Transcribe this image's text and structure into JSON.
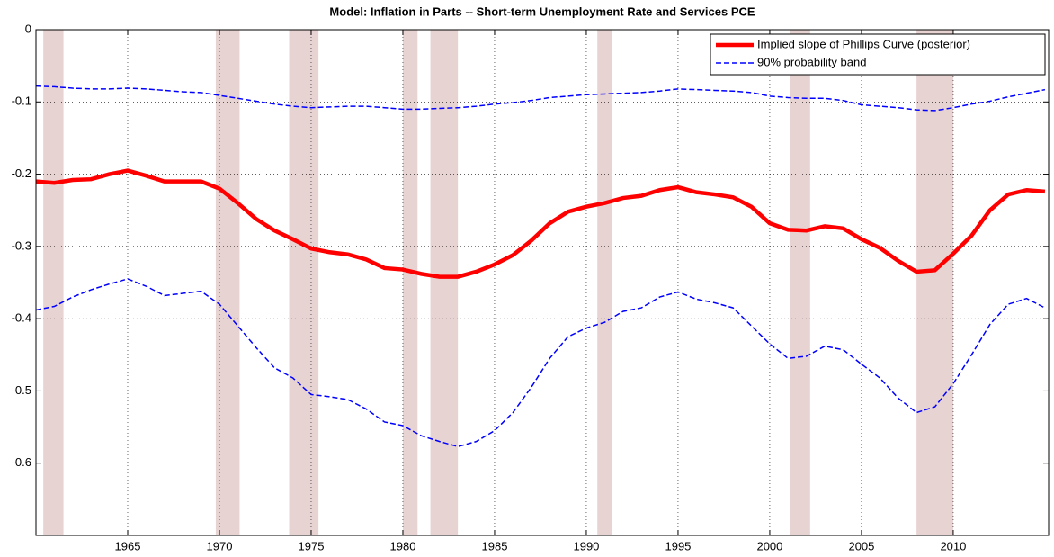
{
  "chart_data": {
    "type": "line",
    "title": "Model: Inflation in Parts -- Short-term  Unemployment Rate and Services PCE",
    "x": [
      1960,
      1961,
      1962,
      1963,
      1964,
      1965,
      1966,
      1967,
      1968,
      1969,
      1970,
      1971,
      1972,
      1973,
      1974,
      1975,
      1976,
      1977,
      1978,
      1979,
      1980,
      1981,
      1982,
      1983,
      1984,
      1985,
      1986,
      1987,
      1988,
      1989,
      1990,
      1991,
      1992,
      1993,
      1994,
      1995,
      1996,
      1997,
      1998,
      1999,
      2000,
      2001,
      2002,
      2003,
      2004,
      2005,
      2006,
      2007,
      2008,
      2009,
      2010,
      2011,
      2012,
      2013,
      2014,
      2015
    ],
    "series": [
      {
        "name": "Implied slope of Phillips Curve (posterior)",
        "color": "#ff0000",
        "values": [
          -0.21,
          -0.212,
          -0.208,
          -0.207,
          -0.2,
          -0.195,
          -0.202,
          -0.21,
          -0.21,
          -0.21,
          -0.22,
          -0.24,
          -0.262,
          -0.278,
          -0.29,
          -0.303,
          -0.308,
          -0.311,
          -0.318,
          -0.33,
          -0.332,
          -0.338,
          -0.342,
          -0.342,
          -0.335,
          -0.325,
          -0.312,
          -0.292,
          -0.268,
          -0.252,
          -0.245,
          -0.24,
          -0.233,
          -0.23,
          -0.222,
          -0.218,
          -0.225,
          -0.228,
          -0.232,
          -0.245,
          -0.268,
          -0.277,
          -0.278,
          -0.272,
          -0.275,
          -0.29,
          -0.302,
          -0.32,
          -0.335,
          -0.333,
          -0.31,
          -0.285,
          -0.25,
          -0.228,
          -0.222,
          -0.224
        ]
      },
      {
        "name": "90% probability band",
        "color": "#0000ff",
        "upper": [
          -0.078,
          -0.079,
          -0.081,
          -0.082,
          -0.082,
          -0.081,
          -0.082,
          -0.084,
          -0.086,
          -0.087,
          -0.091,
          -0.095,
          -0.099,
          -0.103,
          -0.106,
          -0.108,
          -0.107,
          -0.106,
          -0.106,
          -0.108,
          -0.11,
          -0.11,
          -0.109,
          -0.108,
          -0.106,
          -0.103,
          -0.101,
          -0.098,
          -0.094,
          -0.092,
          -0.09,
          -0.089,
          -0.088,
          -0.087,
          -0.085,
          -0.082,
          -0.083,
          -0.084,
          -0.085,
          -0.087,
          -0.092,
          -0.094,
          -0.095,
          -0.095,
          -0.098,
          -0.104,
          -0.106,
          -0.108,
          -0.111,
          -0.112,
          -0.108,
          -0.103,
          -0.099,
          -0.093,
          -0.088,
          -0.083
        ],
        "lower": [
          -0.388,
          -0.383,
          -0.37,
          -0.36,
          -0.352,
          -0.345,
          -0.355,
          -0.368,
          -0.365,
          -0.362,
          -0.38,
          -0.41,
          -0.44,
          -0.468,
          -0.482,
          -0.505,
          -0.508,
          -0.512,
          -0.525,
          -0.543,
          -0.548,
          -0.562,
          -0.57,
          -0.577,
          -0.57,
          -0.555,
          -0.53,
          -0.495,
          -0.455,
          -0.425,
          -0.413,
          -0.405,
          -0.39,
          -0.385,
          -0.37,
          -0.363,
          -0.373,
          -0.378,
          -0.385,
          -0.41,
          -0.435,
          -0.455,
          -0.452,
          -0.438,
          -0.443,
          -0.463,
          -0.482,
          -0.51,
          -0.53,
          -0.522,
          -0.49,
          -0.45,
          -0.408,
          -0.38,
          -0.372,
          -0.385
        ]
      }
    ],
    "shaded_ranges": [
      [
        1960.4,
        1961.5
      ],
      [
        1969.8,
        1971.1
      ],
      [
        1973.8,
        1975.4
      ],
      [
        1980.0,
        1980.8
      ],
      [
        1981.5,
        1983.0
      ],
      [
        1990.6,
        1991.4
      ],
      [
        2001.1,
        2002.2
      ],
      [
        2008.0,
        2010.0
      ]
    ],
    "shade_color": "#e8d3d3",
    "xlim": [
      1960,
      2015.2
    ],
    "xticks": [
      1965,
      1970,
      1975,
      1980,
      1985,
      1990,
      1995,
      2000,
      2005,
      2010
    ],
    "ylim": [
      -0.7,
      0
    ],
    "yticks": [
      0,
      -0.1,
      -0.2,
      -0.3,
      -0.4,
      -0.5,
      -0.6
    ],
    "grid": true,
    "legend": "upper right"
  }
}
